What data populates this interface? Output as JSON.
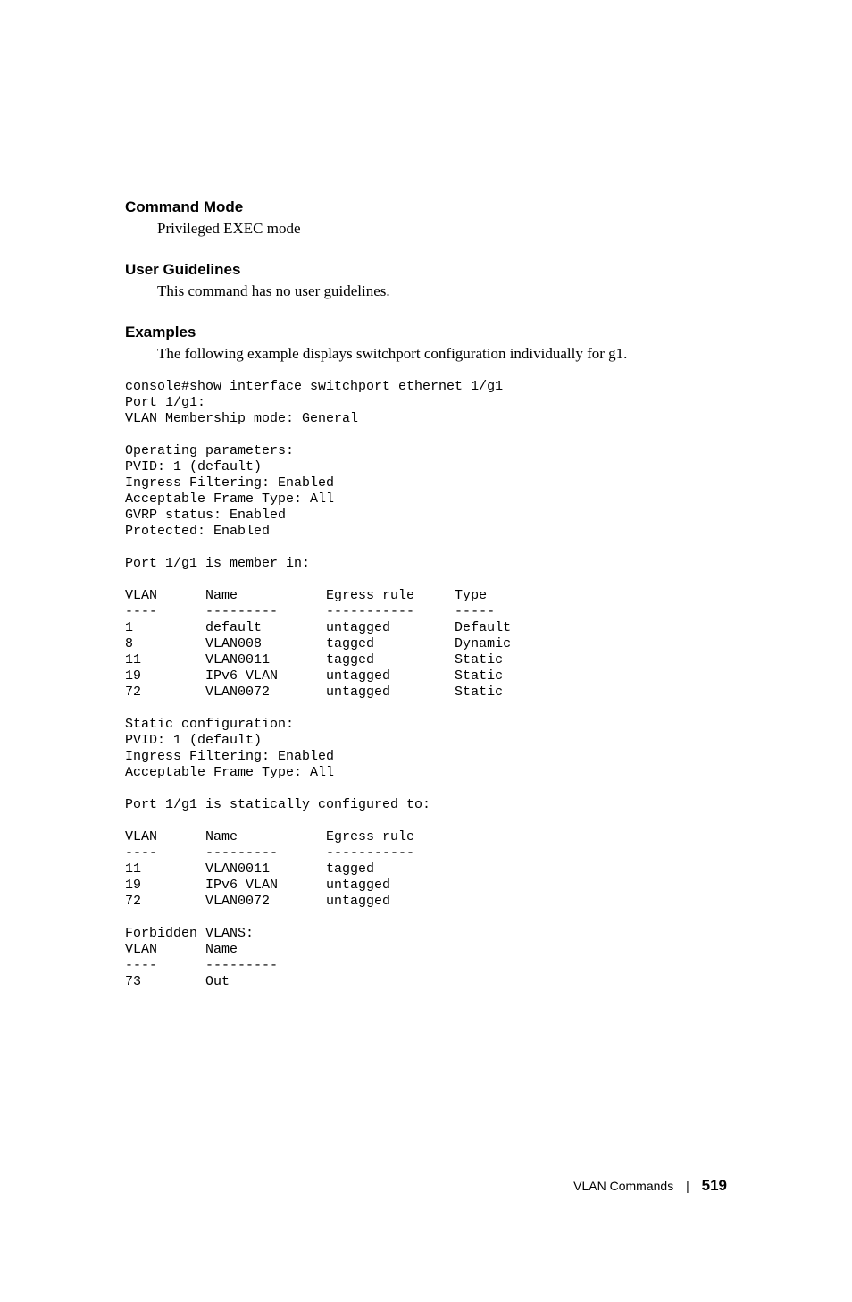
{
  "sections": {
    "command_mode": {
      "heading": "Command Mode",
      "body": "Privileged EXEC mode"
    },
    "user_guidelines": {
      "heading": "User Guidelines",
      "body": "This command has no user guidelines."
    },
    "examples": {
      "heading": "Examples",
      "body": "The following example displays switchport configuration individually for g1."
    }
  },
  "code_block": "console#show interface switchport ethernet 1/g1\nPort 1/g1:\nVLAN Membership mode: General\n\nOperating parameters:\nPVID: 1 (default)\nIngress Filtering: Enabled\nAcceptable Frame Type: All\nGVRP status: Enabled\nProtected: Enabled\n\nPort 1/g1 is member in:\n\nVLAN      Name           Egress rule     Type\n----      ---------      -----------     -----\n1         default        untagged        Default\n8         VLAN008        tagged          Dynamic\n11        VLAN0011       tagged          Static\n19        IPv6 VLAN      untagged        Static\n72        VLAN0072       untagged        Static\n\nStatic configuration:\nPVID: 1 (default)\nIngress Filtering: Enabled\nAcceptable Frame Type: All\n\nPort 1/g1 is statically configured to:\n\nVLAN      Name           Egress rule\n----      ---------      -----------\n11        VLAN0011       tagged\n19        IPv6 VLAN      untagged\n72        VLAN0072       untagged\n\nForbidden VLANS:\nVLAN      Name\n----      ---------\n73        Out",
  "footer": {
    "section": "VLAN Commands",
    "separator": "|",
    "page": "519"
  }
}
